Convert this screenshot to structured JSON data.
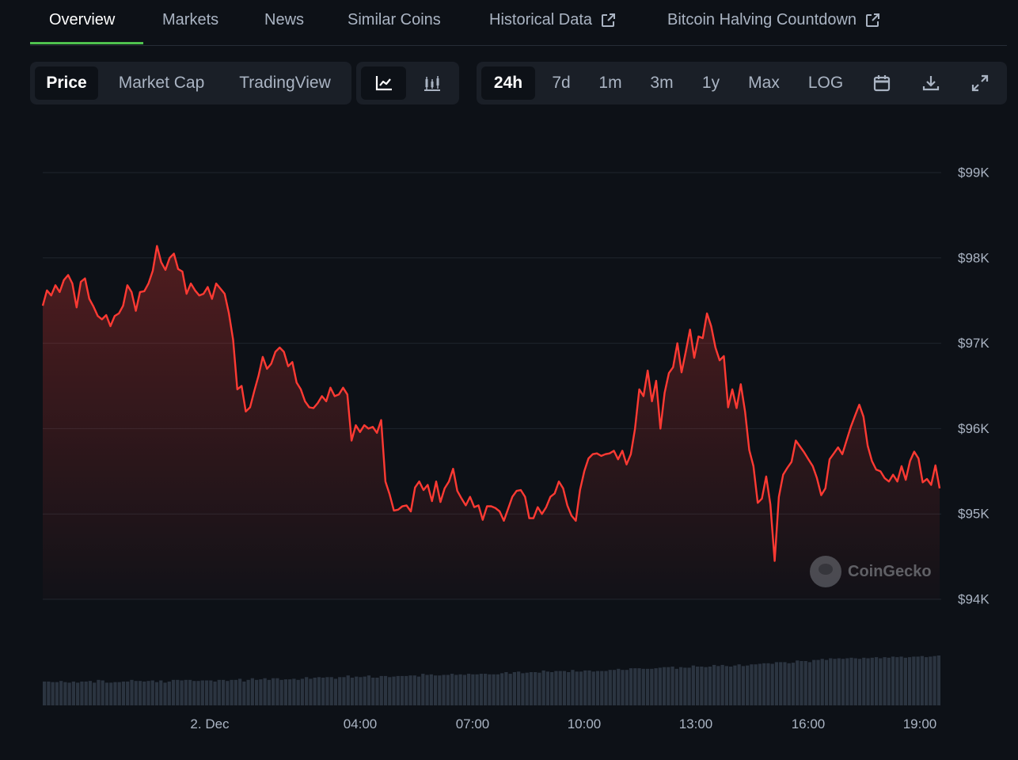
{
  "tabs": [
    {
      "label": "Overview",
      "active": true,
      "external": false
    },
    {
      "label": "Markets",
      "active": false,
      "external": false
    },
    {
      "label": "News",
      "active": false,
      "external": false
    },
    {
      "label": "Similar Coins",
      "active": false,
      "external": false
    },
    {
      "label": "Historical Data",
      "active": false,
      "external": true
    },
    {
      "label": "Bitcoin Halving Countdown",
      "active": false,
      "external": true
    }
  ],
  "metric_toggle": {
    "price": "Price",
    "market_cap": "Market Cap",
    "tradingview": "TradingView",
    "selected": "Price"
  },
  "chart_type_toggle": {
    "line_icon": "line-chart-icon",
    "candle_icon": "candlestick-chart-icon",
    "selected": "line"
  },
  "range_toggle": {
    "options": [
      "24h",
      "7d",
      "1m",
      "3m",
      "1y",
      "Max",
      "LOG"
    ],
    "selected": "24h",
    "icons": [
      "calendar-icon",
      "download-icon",
      "expand-icon"
    ]
  },
  "watermark": "CoinGecko",
  "colors": {
    "line": "#ff3a33",
    "volume": "#2b3440",
    "accent": "#4fc24f",
    "background": "#0d1117"
  },
  "chart_data": {
    "type": "area",
    "title": "",
    "xlabel": "",
    "ylabel": "",
    "y_ticks": [
      "$94K",
      "$95K",
      "$96K",
      "$97K",
      "$98K",
      "$99K"
    ],
    "ylim": [
      94000,
      99000
    ],
    "x_ticks": [
      "2. Dec",
      "04:00",
      "07:00",
      "10:00",
      "13:00",
      "16:00",
      "19:00"
    ],
    "grid": true,
    "legend": "none",
    "series": [
      {
        "values": [
          97440,
          97620,
          97560,
          97680,
          97600,
          97740,
          97800,
          97700,
          97420,
          97720,
          97760,
          97520,
          97430,
          97320,
          97280,
          97330,
          97200,
          97320,
          97350,
          97440,
          97680,
          97600,
          97380,
          97600,
          97610,
          97700,
          97850,
          98140,
          97950,
          97860,
          98000,
          98050,
          97870,
          97840,
          97580,
          97700,
          97620,
          97560,
          97580,
          97660,
          97520,
          97700,
          97640,
          97580,
          97350,
          97040,
          96460,
          96500,
          96200,
          96250,
          96440,
          96620,
          96840,
          96700,
          96760,
          96900,
          96950,
          96900,
          96730,
          96780,
          96540,
          96460,
          96320,
          96250,
          96240,
          96300,
          96380,
          96320,
          96480,
          96380,
          96400,
          96480,
          96400,
          95860,
          96040,
          95960,
          96040,
          96000,
          96020,
          95950,
          96100,
          95380,
          95230,
          95040,
          95050,
          95090,
          95100,
          95030,
          95310,
          95380,
          95280,
          95340,
          95150,
          95380,
          95140,
          95300,
          95380,
          95530,
          95270,
          95180,
          95100,
          95200,
          95080,
          95100,
          94930,
          95090,
          95090,
          95070,
          95030,
          94920,
          95060,
          95200,
          95270,
          95280,
          95200,
          94950,
          94950,
          95080,
          95000,
          95080,
          95200,
          95240,
          95380,
          95300,
          95100,
          94980,
          94920,
          95280,
          95500,
          95650,
          95700,
          95710,
          95680,
          95700,
          95710,
          95740,
          95640,
          95740,
          95580,
          95700,
          96000,
          96460,
          96380,
          96680,
          96320,
          96560,
          96000,
          96420,
          96650,
          96720,
          97000,
          96660,
          96900,
          97160,
          96830,
          97080,
          97060,
          97350,
          97200,
          96950,
          96800,
          96850,
          96250,
          96460,
          96240,
          96520,
          96200,
          95750,
          95560,
          95130,
          95180,
          95440,
          95110,
          94450,
          95200,
          95460,
          95540,
          95610,
          95860,
          95790,
          95720,
          95640,
          95560,
          95420,
          95220,
          95300,
          95640,
          95710,
          95780,
          95700,
          95860,
          96020,
          96150,
          96280,
          96140,
          95800,
          95620,
          95520,
          95500,
          95420,
          95380,
          95460,
          95380,
          95560,
          95400,
          95620,
          95730,
          95650,
          95370,
          95410,
          95340,
          95570,
          95300
        ]
      }
    ],
    "volume": {
      "values": [
        0.43,
        0.43,
        0.42,
        0.42,
        0.44,
        0.42,
        0.41,
        0.43,
        0.41,
        0.43,
        0.43,
        0.44,
        0.41,
        0.46,
        0.45,
        0.41,
        0.41,
        0.42,
        0.42,
        0.43,
        0.43,
        0.46,
        0.44,
        0.44,
        0.43,
        0.44,
        0.45,
        0.42,
        0.45,
        0.41,
        0.43,
        0.46,
        0.46,
        0.45,
        0.46,
        0.46,
        0.44,
        0.44,
        0.45,
        0.45,
        0.45,
        0.43,
        0.46,
        0.46,
        0.44,
        0.46,
        0.46,
        0.48,
        0.43,
        0.46,
        0.49,
        0.46,
        0.47,
        0.49,
        0.46,
        0.49,
        0.49,
        0.46,
        0.47,
        0.47,
        0.48,
        0.46,
        0.48,
        0.51,
        0.48,
        0.5,
        0.51,
        0.5,
        0.51,
        0.51,
        0.48,
        0.51,
        0.51,
        0.54,
        0.5,
        0.52,
        0.51,
        0.52,
        0.54,
        0.5,
        0.5,
        0.53,
        0.53,
        0.51,
        0.52,
        0.53,
        0.53,
        0.53,
        0.54,
        0.54,
        0.52,
        0.57,
        0.55,
        0.56,
        0.54,
        0.54,
        0.55,
        0.55,
        0.57,
        0.55,
        0.56,
        0.55,
        0.57,
        0.56,
        0.56,
        0.57,
        0.57,
        0.56,
        0.56,
        0.56,
        0.58,
        0.6,
        0.57,
        0.6,
        0.61,
        0.58,
        0.59,
        0.6,
        0.6,
        0.59,
        0.63,
        0.61,
        0.6,
        0.62,
        0.62,
        0.62,
        0.6,
        0.64,
        0.61,
        0.61,
        0.63,
        0.63,
        0.61,
        0.62,
        0.62,
        0.62,
        0.64,
        0.64,
        0.66,
        0.64,
        0.64,
        0.67,
        0.67,
        0.67,
        0.66,
        0.66,
        0.66,
        0.67,
        0.68,
        0.69,
        0.69,
        0.7,
        0.66,
        0.69,
        0.68,
        0.68,
        0.72,
        0.7,
        0.7,
        0.69,
        0.7,
        0.73,
        0.71,
        0.73,
        0.71,
        0.7,
        0.72,
        0.74,
        0.71,
        0.72,
        0.74,
        0.74,
        0.75,
        0.76,
        0.76,
        0.75,
        0.78,
        0.78,
        0.78,
        0.76,
        0.77,
        0.81,
        0.8,
        0.8,
        0.78,
        0.82,
        0.82,
        0.84,
        0.82,
        0.85,
        0.84,
        0.85,
        0.84,
        0.85,
        0.86,
        0.85,
        0.84,
        0.86,
        0.85,
        0.86,
        0.87,
        0.85,
        0.87,
        0.86,
        0.88,
        0.87,
        0.88,
        0.86,
        0.87,
        0.88,
        0.88,
        0.89,
        0.87,
        0.88,
        0.89,
        0.9
      ]
    }
  }
}
